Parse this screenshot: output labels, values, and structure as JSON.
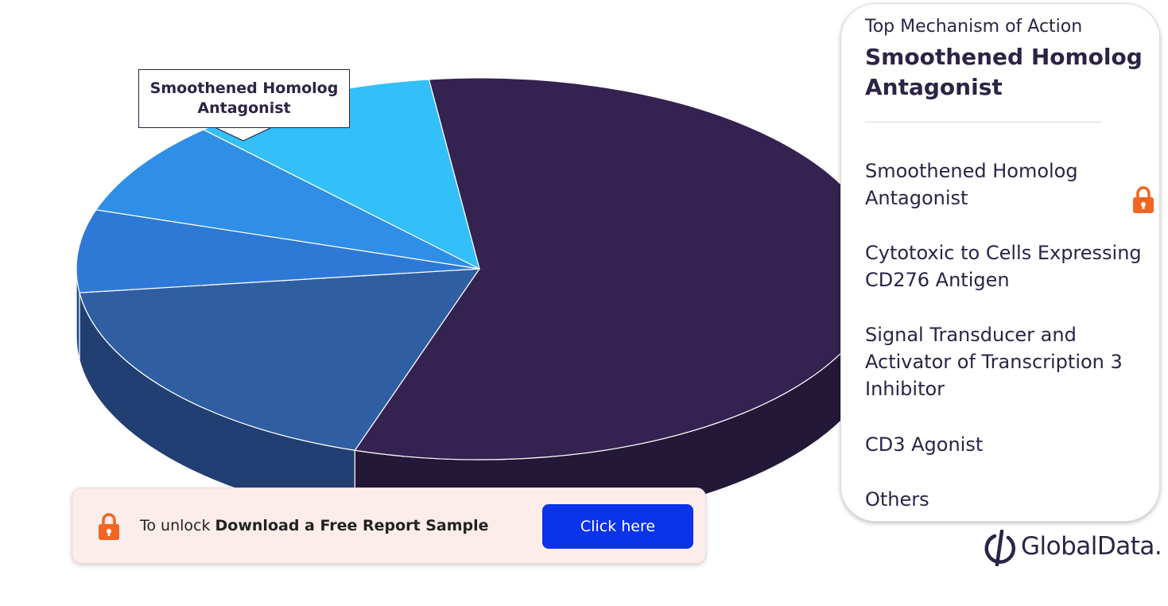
{
  "chart_data": {
    "type": "pie",
    "title": "Top Mechanism of Action",
    "highlight": "Smoothened Homolog Antagonist",
    "legend_position": "right",
    "slices": [
      {
        "label": "Smoothened Homolog Antagonist",
        "value": 57,
        "top_color": "#342250",
        "side_color": "#231838"
      },
      {
        "label": "Cytotoxic to Cells Expressing CD276 Antigen",
        "value": 18,
        "top_color": "#2f5ea3",
        "side_color": "#213f72"
      },
      {
        "label": "Signal Transducer and Activator of Transcription 3 Inhibitor",
        "value": 7,
        "top_color": "#2e79d6",
        "side_color": "#1d4f8f"
      },
      {
        "label": "CD3 Agonist",
        "value": 8,
        "top_color": "#2f8fe6",
        "side_color": "#0f3a5c"
      },
      {
        "label": "Others",
        "value": 10,
        "top_color": "#33bff8",
        "side_color": "#154d66"
      }
    ]
  },
  "callout": {
    "label": "Smoothened Homolog\nAntagonist"
  },
  "legend": {
    "subtitle": "Top Mechanism of Action",
    "title": "Smoothened Homolog Antagonist",
    "items": [
      {
        "label": "Smoothened Homolog Antagonist",
        "locked": true
      },
      {
        "label": "Cytotoxic to Cells Expressing CD276 Antigen"
      },
      {
        "label": "Signal Transducer and Activator of Transcription 3 Inhibitor"
      },
      {
        "label": "CD3 Agonist"
      },
      {
        "label": "Others"
      }
    ]
  },
  "banner": {
    "prefix": "To unlock",
    "strong": "Download a Free Report Sample",
    "button_label": "Click here",
    "button_color": "#0b33ea",
    "lock_color": "#f26522"
  },
  "brand": {
    "name": "GlobalData."
  }
}
